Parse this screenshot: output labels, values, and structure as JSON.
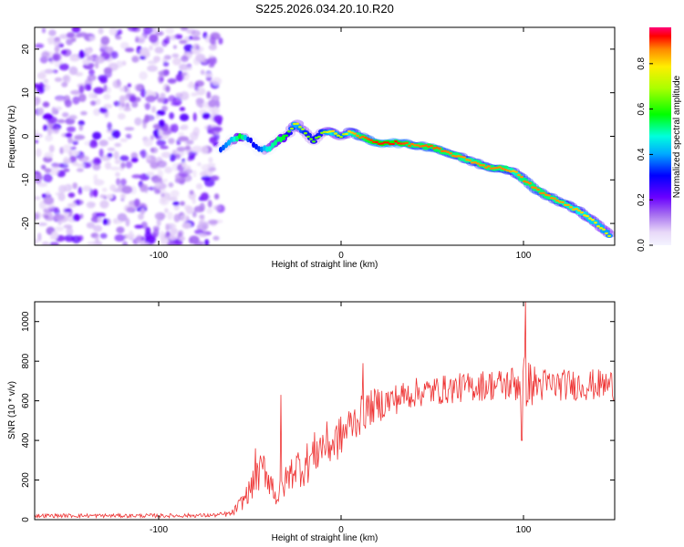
{
  "title": "S225.2026.034.20.10.R20",
  "chart_data": [
    {
      "type": "heatmap",
      "xlabel": "Height of straight line (km)",
      "ylabel": "Frequency (Hz)",
      "xlim": [
        -168,
        150
      ],
      "ylim": [
        -25,
        25
      ],
      "xticks": [
        -100,
        0,
        100
      ],
      "yticks": [
        -20,
        -10,
        0,
        10,
        20
      ],
      "colorbar": {
        "label": "Normalized spectral amplitude",
        "range": [
          0,
          0.96
        ],
        "ticks": [
          0.0,
          0.2,
          0.4,
          0.6,
          0.8
        ]
      },
      "noise_region_x": [
        -168,
        -66
      ],
      "ridge": {
        "x": [
          -66,
          -60,
          -55,
          -50,
          -45,
          -40,
          -35,
          -30,
          -25,
          -20,
          -15,
          -10,
          -5,
          0,
          5,
          10,
          20,
          30,
          40,
          50,
          60,
          70,
          80,
          90,
          95,
          100,
          110,
          120,
          130,
          140,
          148
        ],
        "frequency": [
          -3,
          -1,
          0,
          -1,
          -3,
          -3,
          -1,
          0,
          3,
          1,
          -1,
          1,
          1,
          0,
          1,
          0,
          -1.5,
          -1.5,
          -2,
          -2.5,
          -4,
          -5.5,
          -7,
          -7.5,
          -8,
          -10,
          -13,
          -15,
          -17,
          -20,
          -23
        ],
        "amplitude": [
          0.35,
          0.45,
          0.6,
          0.3,
          0.35,
          0.5,
          0.55,
          0.6,
          0.8,
          0.7,
          0.65,
          0.7,
          0.85,
          0.7,
          0.85,
          0.9,
          0.95,
          0.95,
          0.9,
          0.92,
          0.9,
          0.88,
          0.9,
          0.9,
          0.85,
          0.9,
          0.9,
          0.88,
          0.85,
          0.8,
          0.75
        ]
      }
    },
    {
      "type": "line",
      "xlabel": "Height of straight line (km)",
      "ylabel": "SNR (10 * v/v)",
      "xlim": [
        -168,
        150
      ],
      "ylim": [
        0,
        1100
      ],
      "xticks": [
        -100,
        0,
        100
      ],
      "yticks": [
        0,
        200,
        400,
        600,
        800,
        1000
      ],
      "series": [
        {
          "name": "SNR",
          "color": "#ee3333",
          "x": [
            -168,
            -150,
            -120,
            -90,
            -70,
            -60,
            -55,
            -50,
            -45,
            -42,
            -40,
            -38,
            -35,
            -30,
            -25,
            -20,
            -15,
            -10,
            -5,
            0,
            5,
            10,
            15,
            20,
            30,
            40,
            50,
            60,
            70,
            80,
            90,
            95,
            100,
            105,
            110,
            120,
            130,
            140,
            150
          ],
          "mean": [
            20,
            20,
            20,
            20,
            22,
            30,
            80,
            150,
            230,
            260,
            220,
            180,
            110,
            200,
            270,
            270,
            330,
            380,
            380,
            420,
            480,
            520,
            560,
            580,
            610,
            640,
            650,
            660,
            670,
            680,
            680,
            690,
            700,
            680,
            680,
            680,
            680,
            680,
            680
          ],
          "spread": [
            10,
            10,
            10,
            10,
            10,
            15,
            40,
            60,
            90,
            100,
            90,
            80,
            60,
            80,
            100,
            110,
            110,
            120,
            110,
            110,
            100,
            100,
            90,
            90,
            80,
            75,
            75,
            75,
            75,
            80,
            85,
            100,
            140,
            110,
            90,
            80,
            80,
            80,
            80
          ],
          "peaks": [
            {
              "x": 101,
              "y": 1100
            },
            {
              "x": 99,
              "y": 400
            },
            {
              "x": 12,
              "y": 790
            },
            {
              "x": -47,
              "y": 360
            },
            {
              "x": -33,
              "y": 630
            }
          ]
        }
      ]
    }
  ]
}
